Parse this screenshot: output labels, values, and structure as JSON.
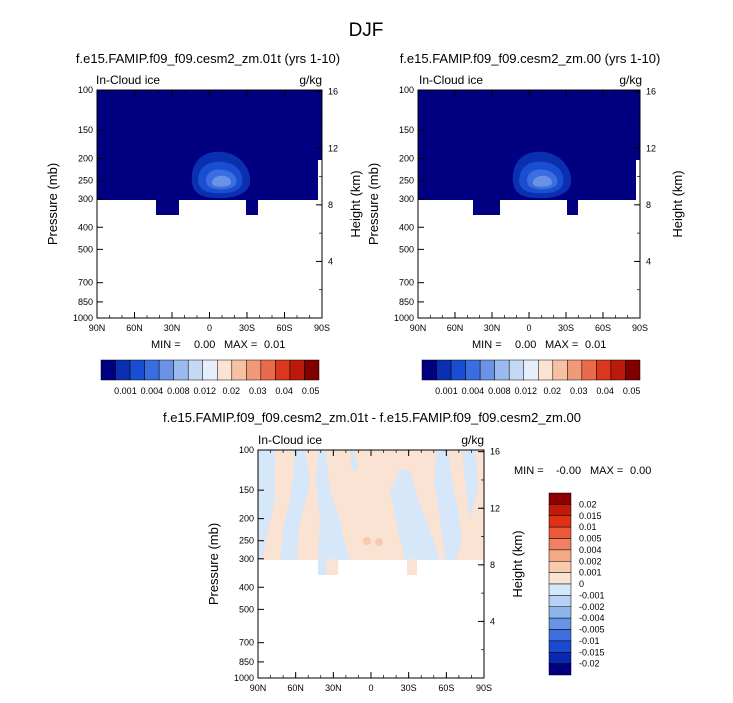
{
  "main_title": "DJF",
  "colors": {
    "positive": [
      "#fbe3d3",
      "#f8cbb0",
      "#f5a884",
      "#f08060",
      "#ea5a3a",
      "#e03015",
      "#c21a0a",
      "#8b0000"
    ],
    "negative": [
      "#d5e7f8",
      "#b6d1f2",
      "#8fb4ec",
      "#6894e6",
      "#3d6ee0",
      "#1a4ad0",
      "#0828b0",
      "#000080"
    ],
    "seq": [
      "#000080",
      "#0a2fb0",
      "#1a4ed0",
      "#3a6ee0",
      "#6a93e6",
      "#9bbaee",
      "#c5d9f4",
      "#e6eefb",
      "#fbe3d3",
      "#f6c0a3",
      "#f19a7a",
      "#ea6a4c",
      "#d9371f",
      "#ba1a0a",
      "#800000"
    ]
  },
  "chart_data": [
    {
      "type": "heatmap",
      "name": "panel-1",
      "title": "f.e15.FAMIP.f09_f09.cesm2_zm.01t (yrs 1-10)",
      "left_label": "In-Cloud ice",
      "right_label": "g/kg",
      "xlabel": "",
      "ylabel": "Pressure (mb)",
      "y2label": "Height (km)",
      "x_ticks": [
        "90N",
        "60N",
        "30N",
        "0",
        "30S",
        "60S",
        "90S"
      ],
      "y_ticks": [
        "100",
        "150",
        "200",
        "250",
        "300",
        "400",
        "500",
        "700",
        "850",
        "1000"
      ],
      "y2_ticks": [
        "16",
        "12",
        "8",
        "4"
      ],
      "stats": {
        "min_label": "MIN =",
        "min": "0.00",
        "max_label": "MAX =",
        "max": "0.01"
      },
      "levels": [
        "0.001",
        "0.004",
        "0.008",
        "0.012",
        "0.02",
        "0.03",
        "0.04",
        "0.05"
      ],
      "fill": "#000080",
      "feature": "ice maximum near 0° between 200 and 280 mb"
    },
    {
      "type": "heatmap",
      "name": "panel-2",
      "title": "f.e15.FAMIP.f09_f09.cesm2_zm.00 (yrs 1-10)",
      "left_label": "In-Cloud ice",
      "right_label": "g/kg",
      "xlabel": "",
      "ylabel": "Pressure (mb)",
      "y2label": "Height (km)",
      "x_ticks": [
        "90N",
        "60N",
        "30N",
        "0",
        "30S",
        "60S",
        "90S"
      ],
      "y_ticks": [
        "100",
        "150",
        "200",
        "250",
        "300",
        "400",
        "500",
        "700",
        "850",
        "1000"
      ],
      "y2_ticks": [
        "16",
        "12",
        "8",
        "4"
      ],
      "stats": {
        "min_label": "MIN =",
        "min": "0.00",
        "max_label": "MAX =",
        "max": "0.01"
      },
      "levels": [
        "0.001",
        "0.004",
        "0.008",
        "0.012",
        "0.02",
        "0.03",
        "0.04",
        "0.05"
      ],
      "fill": "#000080",
      "feature": "ice maximum near 0° between 200 and 280 mb"
    },
    {
      "type": "heatmap",
      "name": "panel-diff",
      "title": "f.e15.FAMIP.f09_f09.cesm2_zm.01t - f.e15.FAMIP.f09_f09.cesm2_zm.00",
      "left_label": "In-Cloud ice",
      "right_label": "g/kg",
      "ylabel": "Pressure (mb)",
      "y2label": "Height (km)",
      "x_ticks": [
        "90N",
        "60N",
        "30N",
        "0",
        "30S",
        "60S",
        "90S"
      ],
      "y_ticks": [
        "100",
        "150",
        "200",
        "250",
        "300",
        "400",
        "500",
        "700",
        "850",
        "1000"
      ],
      "y2_ticks": [
        "16",
        "12",
        "8",
        "4"
      ],
      "stats": {
        "min_label": "MIN =",
        "min": "-0.00",
        "max_label": "MAX =",
        "max": "0.00"
      },
      "levels": [
        "0.02",
        "0.015",
        "0.01",
        "0.005",
        "0.004",
        "0.002",
        "0.001",
        "0",
        "-0.001",
        "-0.002",
        "-0.004",
        "-0.005",
        "-0.01",
        "-0.015",
        "-0.02"
      ]
    }
  ]
}
